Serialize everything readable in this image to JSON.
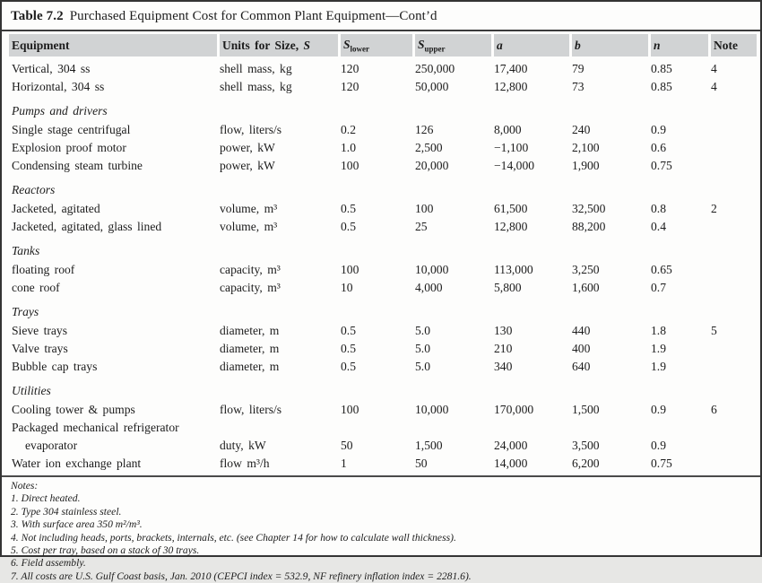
{
  "title": {
    "label": "Table 7.2",
    "text": "Purchased Equipment Cost for Common Plant Equipment—Cont’d"
  },
  "colors": {
    "header_bg": "#d1d3d4",
    "border": "#343434",
    "text": "#1c1c1c",
    "page_bg": "#fdfdfc"
  },
  "table": {
    "columns": [
      {
        "label": "Equipment"
      },
      {
        "label": "Units for Size, ",
        "italic": "S"
      },
      {
        "base": "S",
        "sub": "lower"
      },
      {
        "base": "S",
        "sub": "upper"
      },
      {
        "label": "a"
      },
      {
        "label": "b"
      },
      {
        "label": "n"
      },
      {
        "label": "Note"
      }
    ],
    "rows": [
      {
        "type": "item",
        "equipment": "Vertical, 304 ss",
        "units": "shell mass, kg",
        "s_lower": "120",
        "s_upper": "250,000",
        "a": "17,400",
        "b": "79",
        "n": "0.85",
        "note": "4"
      },
      {
        "type": "item",
        "equipment": "Horizontal, 304 ss",
        "units": "shell mass, kg",
        "s_lower": "120",
        "s_upper": "50,000",
        "a": "12,800",
        "b": "73",
        "n": "0.85",
        "note": "4"
      },
      {
        "type": "section",
        "label": "Pumps and drivers"
      },
      {
        "type": "item",
        "equipment": "Single stage centrifugal",
        "units": "flow, liters/s",
        "s_lower": "0.2",
        "s_upper": "126",
        "a": "8,000",
        "b": "240",
        "n": "0.9",
        "note": ""
      },
      {
        "type": "item",
        "equipment": "Explosion proof motor",
        "units": "power, kW",
        "s_lower": "1.0",
        "s_upper": "2,500",
        "a": "−1,100",
        "b": "2,100",
        "n": "0.6",
        "note": ""
      },
      {
        "type": "item",
        "equipment": "Condensing steam turbine",
        "units": "power, kW",
        "s_lower": "100",
        "s_upper": "20,000",
        "a": "−14,000",
        "b": "1,900",
        "n": "0.75",
        "note": ""
      },
      {
        "type": "section",
        "label": "Reactors"
      },
      {
        "type": "item",
        "equipment": "Jacketed, agitated",
        "units": "volume, m³",
        "s_lower": "0.5",
        "s_upper": "100",
        "a": "61,500",
        "b": "32,500",
        "n": "0.8",
        "note": "2"
      },
      {
        "type": "item",
        "equipment": "Jacketed, agitated, glass lined",
        "units": "volume, m³",
        "s_lower": "0.5",
        "s_upper": "25",
        "a": "12,800",
        "b": "88,200",
        "n": "0.4",
        "note": ""
      },
      {
        "type": "section",
        "label": "Tanks"
      },
      {
        "type": "item",
        "equipment": "floating roof",
        "units": "capacity, m³",
        "s_lower": "100",
        "s_upper": "10,000",
        "a": "113,000",
        "b": "3,250",
        "n": "0.65",
        "note": ""
      },
      {
        "type": "item",
        "equipment": "cone roof",
        "units": "capacity, m³",
        "s_lower": "10",
        "s_upper": "4,000",
        "a": "5,800",
        "b": "1,600",
        "n": "0.7",
        "note": ""
      },
      {
        "type": "section",
        "label": "Trays"
      },
      {
        "type": "item",
        "equipment": "Sieve trays",
        "units": "diameter, m",
        "s_lower": "0.5",
        "s_upper": "5.0",
        "a": "130",
        "b": "440",
        "n": "1.8",
        "note": "5"
      },
      {
        "type": "item",
        "equipment": "Valve trays",
        "units": "diameter, m",
        "s_lower": "0.5",
        "s_upper": "5.0",
        "a": "210",
        "b": "400",
        "n": "1.9",
        "note": ""
      },
      {
        "type": "item",
        "equipment": "Bubble cap trays",
        "units": "diameter, m",
        "s_lower": "0.5",
        "s_upper": "5.0",
        "a": "340",
        "b": "640",
        "n": "1.9",
        "note": ""
      },
      {
        "type": "section",
        "label": "Utilities"
      },
      {
        "type": "item",
        "equipment": "Cooling tower & pumps",
        "units": "flow, liters/s",
        "s_lower": "100",
        "s_upper": "10,000",
        "a": "170,000",
        "b": "1,500",
        "n": "0.9",
        "note": "6"
      },
      {
        "type": "item",
        "equipment": "Packaged mechanical refrigerator",
        "units": "",
        "s_lower": "",
        "s_upper": "",
        "a": "",
        "b": "",
        "n": "",
        "note": ""
      },
      {
        "type": "item",
        "indent": true,
        "equipment": "evaporator",
        "units": "duty, kW",
        "s_lower": "50",
        "s_upper": "1,500",
        "a": "24,000",
        "b": "3,500",
        "n": "0.9",
        "note": ""
      },
      {
        "type": "item",
        "equipment": "Water ion exchange plant",
        "units": "flow m³/h",
        "s_lower": "1",
        "s_upper": "50",
        "a": "14,000",
        "b": "6,200",
        "n": "0.75",
        "note": ""
      }
    ]
  },
  "notes": {
    "label": "Notes:",
    "items": [
      "1. Direct heated.",
      "2. Type 304 stainless steel.",
      "3. With surface area 350 m²/m³.",
      "4. Not including heads, ports, brackets, internals, etc. (see Chapter 14 for how to calculate wall thickness).",
      "5. Cost per tray, based on a stack of 30 trays.",
      "6. Field assembly.",
      "7. All costs are U.S. Gulf Coast basis, Jan. 2010 (CEPCI index = 532.9, NF refinery inflation index = 2281.6)."
    ]
  }
}
